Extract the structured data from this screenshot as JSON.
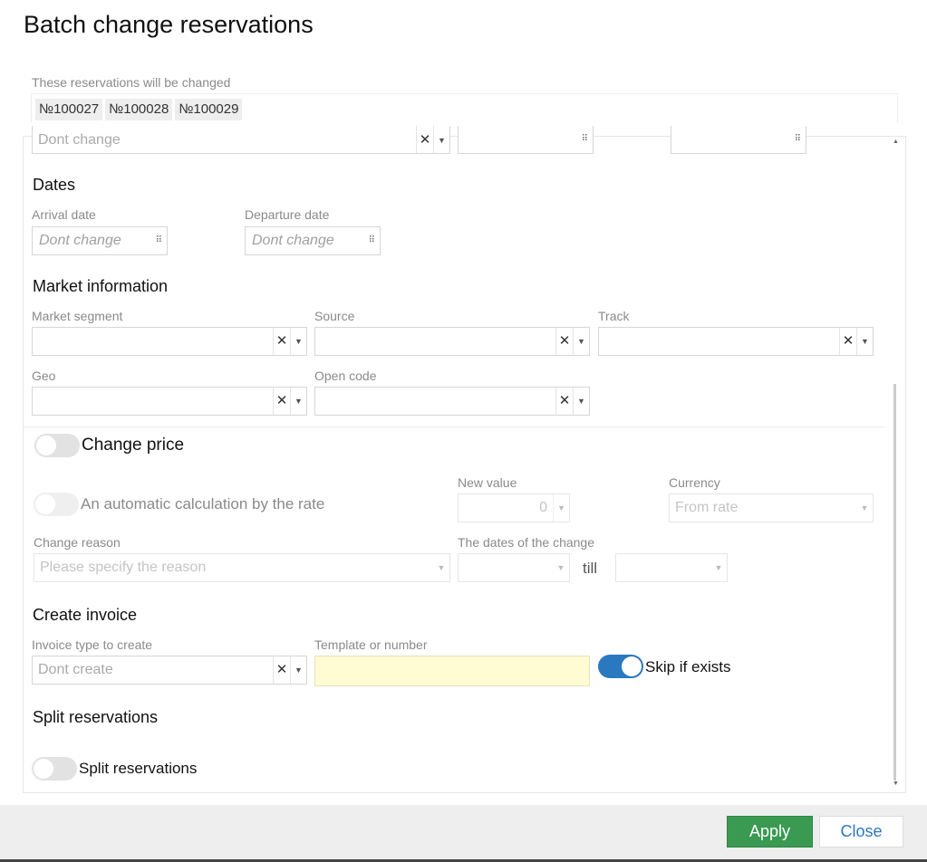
{
  "title": "Batch change reservations",
  "reservations": {
    "label": "These reservations will be changed",
    "items": [
      "№100027",
      "№100028",
      "№100029"
    ]
  },
  "top_row": {
    "select_value": "Dont change"
  },
  "dates": {
    "heading": "Dates",
    "arrival_label": "Arrival date",
    "arrival_placeholder": "Dont change",
    "departure_label": "Departure date",
    "departure_placeholder": "Dont change"
  },
  "market": {
    "heading": "Market information",
    "segment_label": "Market segment",
    "source_label": "Source",
    "track_label": "Track",
    "geo_label": "Geo",
    "open_code_label": "Open code"
  },
  "price": {
    "toggle_label": "Change price",
    "toggle_on": false,
    "auto_label": "An automatic calculation by the rate",
    "auto_on": false,
    "new_value_label": "New value",
    "new_value": "0",
    "currency_label": "Currency",
    "currency_value": "From rate",
    "reason_label": "Change reason",
    "reason_placeholder": "Please specify the reason",
    "dates_label": "The dates of the change",
    "till": "till"
  },
  "invoice": {
    "heading": "Create invoice",
    "type_label": "Invoice type to create",
    "type_value": "Dont create",
    "template_label": "Template or number",
    "template_value": "",
    "skip_label": "Skip if exists",
    "skip_on": true
  },
  "split": {
    "heading": "Split reservations",
    "toggle_label": "Split reservations",
    "toggle_on": false
  },
  "footer": {
    "apply": "Apply",
    "close": "Close"
  },
  "colors": {
    "apply": "#3a9a52",
    "toggle_on": "#2a78c0",
    "template_bg": "#fffbd2"
  }
}
